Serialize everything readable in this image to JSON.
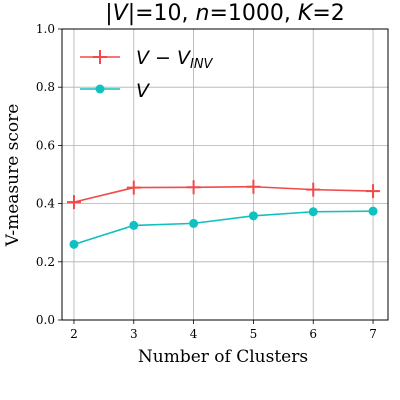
{
  "chart_data": {
    "type": "line",
    "title": "|V|=10, n=1000, K=2",
    "title_parts": {
      "pre": "|",
      "v": "V",
      "mid1": "|=10, ",
      "n": "n",
      "mid2": "=1000, ",
      "k": "K",
      "post": "=2"
    },
    "xlabel": "Number of Clusters",
    "ylabel": "V-measure score",
    "x": [
      2,
      3,
      4,
      5,
      6,
      7
    ],
    "xticks": [
      "2",
      "3",
      "4",
      "5",
      "6",
      "7"
    ],
    "yticks": [
      "0.0",
      "0.2",
      "0.4",
      "0.6",
      "0.8",
      "1.0"
    ],
    "xlim": [
      1.8,
      7.25
    ],
    "ylim": [
      0.0,
      1.0
    ],
    "grid": true,
    "legend_placement": "top-left",
    "series": [
      {
        "name": "V - V_INV",
        "legend_parts": {
          "a": "V",
          "op": " − ",
          "b": "V",
          "sub": "INV"
        },
        "values": [
          0.405,
          0.455,
          0.456,
          0.458,
          0.448,
          0.443
        ],
        "color": "#f04a4a",
        "marker": "plus"
      },
      {
        "name": "V",
        "legend_parts": {
          "a": "V"
        },
        "values": [
          0.26,
          0.325,
          0.332,
          0.358,
          0.372,
          0.374
        ],
        "color": "#11c0c0",
        "marker": "circle"
      }
    ]
  }
}
